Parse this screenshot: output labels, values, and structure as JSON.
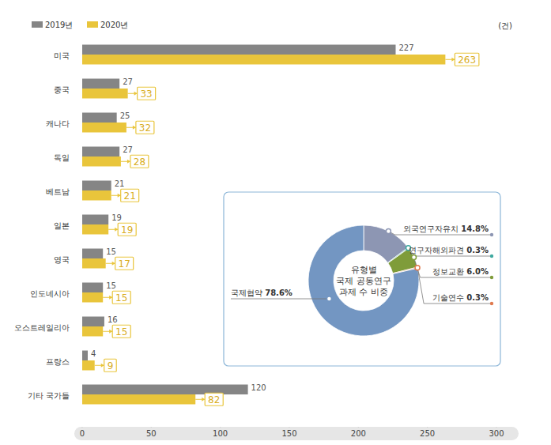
{
  "chart_data": [
    {
      "type": "bar",
      "orientation": "horizontal",
      "xlabel": "(건)",
      "categories": [
        "미국",
        "중국",
        "캐나다",
        "독일",
        "베트남",
        "일본",
        "영국",
        "인도네시아",
        "오스트레일리아",
        "프랑스",
        "기타 국가들"
      ],
      "series": [
        {
          "name": "2019년",
          "color": "#858585",
          "values": [
            227,
            27,
            25,
            27,
            21,
            19,
            15,
            15,
            16,
            4,
            120
          ]
        },
        {
          "name": "2020년",
          "color": "#e9c53b",
          "values": [
            263,
            33,
            32,
            28,
            21,
            19,
            17,
            15,
            15,
            9,
            82
          ]
        }
      ],
      "xlim": [
        0,
        300
      ],
      "xticks": [
        0,
        50,
        100,
        150,
        200,
        250,
        300
      ],
      "data_labels": true,
      "legend": "top-left"
    },
    {
      "type": "pie",
      "title": "유형별\n국제 공동연구\n과제 수 비중",
      "categories": [
        "외국연구자유치",
        "연구자해외파견",
        "정보교환",
        "기술연수",
        "국제협약"
      ],
      "values": [
        14.8,
        0.3,
        6.0,
        0.3,
        78.6
      ],
      "value_labels": [
        "14.8%",
        "0.3%",
        "6.0%",
        "0.3%",
        "78.6%"
      ],
      "colors": [
        "#8d96b3",
        "#3fa9a0",
        "#7f9c3a",
        "#e07a4f",
        "#7396c2"
      ],
      "data_labels": true
    }
  ]
}
